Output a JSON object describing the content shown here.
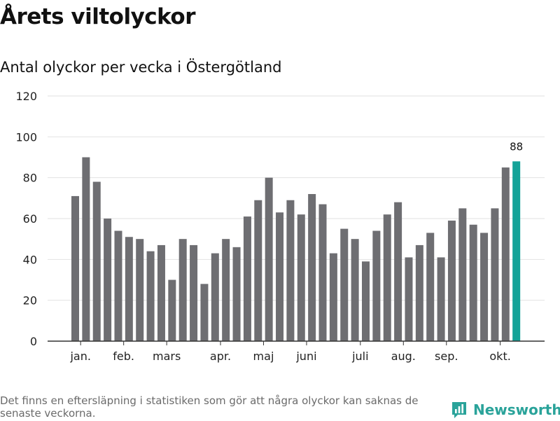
{
  "chart_data": {
    "type": "bar",
    "title": "Årets viltolyckor",
    "subtitle": "Antal olyckor per vecka i Östergötland",
    "xlabel": "",
    "ylabel": "",
    "ylim": [
      0,
      120
    ],
    "yticks": [
      0,
      20,
      40,
      60,
      80,
      100,
      120
    ],
    "grid": true,
    "values": [
      71,
      90,
      78,
      60,
      54,
      51,
      50,
      44,
      47,
      30,
      50,
      47,
      28,
      43,
      50,
      46,
      61,
      69,
      80,
      63,
      69,
      62,
      72,
      67,
      43,
      55,
      50,
      39,
      54,
      62,
      68,
      41,
      47,
      53,
      41,
      59,
      65,
      57,
      53,
      65,
      85,
      88
    ],
    "month_labels": [
      {
        "label": "jan.",
        "week": 1
      },
      {
        "label": "feb.",
        "week": 5
      },
      {
        "label": "mars",
        "week": 9
      },
      {
        "label": "apr.",
        "week": 14
      },
      {
        "label": "maj",
        "week": 18
      },
      {
        "label": "juni",
        "week": 22
      },
      {
        "label": "juli",
        "week": 27
      },
      {
        "label": "aug.",
        "week": 31
      },
      {
        "label": "sep.",
        "week": 35
      },
      {
        "label": "okt.",
        "week": 40
      }
    ],
    "highlight_index": 41,
    "highlight_label": "88",
    "colors": {
      "bar": "#6e6e72",
      "highlight": "#14a398",
      "grid": "#e2e2e2",
      "axis": "#333333"
    }
  },
  "footnote": "Det finns en eftersläpning i statistiken som gör att några olyckor kan saknas de senaste veckorna.",
  "brand": {
    "name": "Newsworthy",
    "color": "#2aa39a"
  }
}
